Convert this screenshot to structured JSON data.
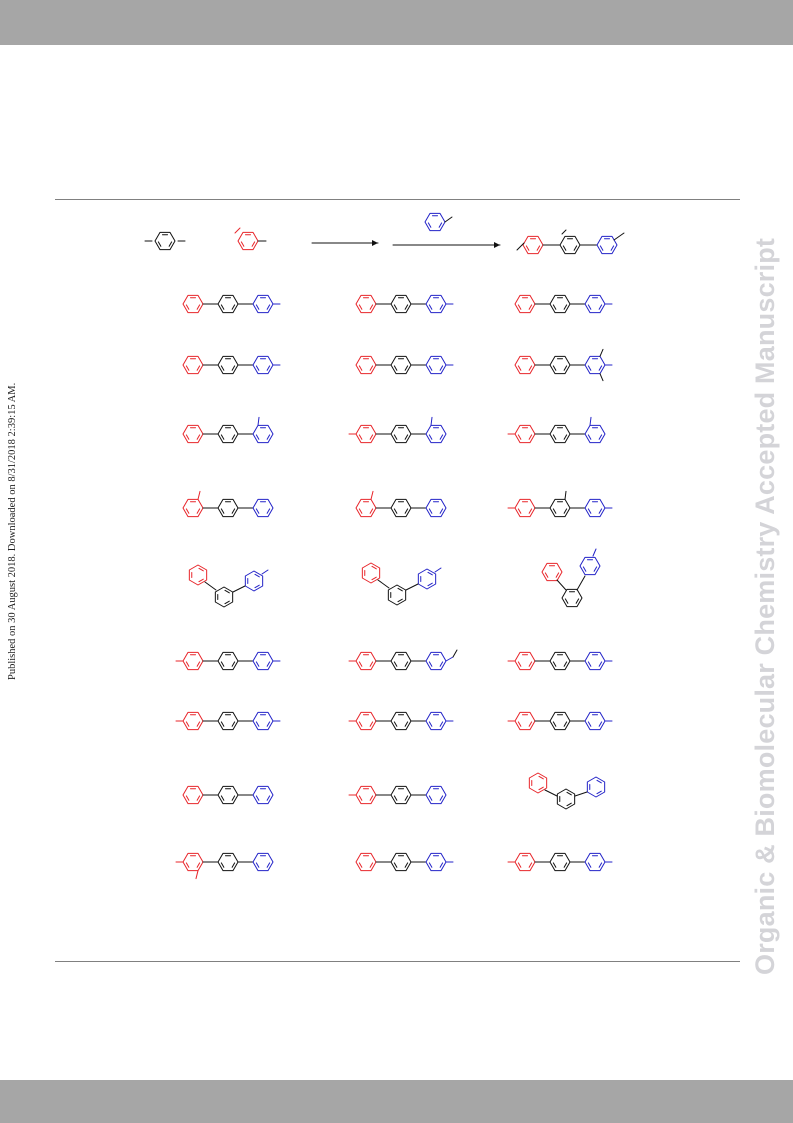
{
  "sidebar": {
    "published_note": "Published on 30 August 2018. Downloaded on 8/31/2018 2:39:15 AM."
  },
  "watermark": {
    "journal": "Organic & Biomolecular Chemistry Accepted Manuscript"
  },
  "colors": {
    "red": "#e8252a",
    "black": "#111111",
    "blue": "#2323c8",
    "bar": "#a6a6a6",
    "watermark": "#d4d4d8"
  }
}
